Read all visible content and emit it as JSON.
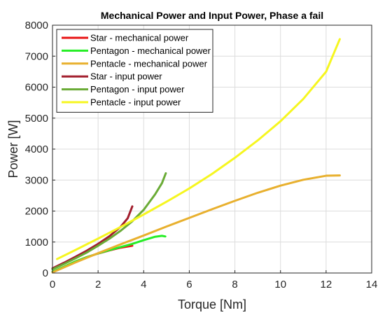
{
  "chart_data": {
    "type": "line",
    "title": "Mechanical Power and Input Power, Phase a fail",
    "xlabel": "Torque [Nm]",
    "ylabel": "Power [W]",
    "xlim": [
      0,
      14
    ],
    "ylim": [
      0,
      8000
    ],
    "xticks": [
      0,
      2,
      4,
      6,
      8,
      10,
      12,
      14
    ],
    "yticks": [
      0,
      1000,
      2000,
      3000,
      4000,
      5000,
      6000,
      7000,
      8000
    ],
    "grid": true,
    "legend_position": "top-left",
    "series": [
      {
        "name": "Star - mechanical power",
        "color": "#e81414",
        "x": [
          0,
          0.5,
          1,
          1.5,
          2,
          2.5,
          3,
          3.5
        ],
        "y": [
          40,
          200,
          370,
          510,
          630,
          730,
          820,
          880
        ]
      },
      {
        "name": "Pentagon - mechanical power",
        "color": "#26ee26",
        "x": [
          0,
          0.5,
          1,
          1.5,
          2,
          2.5,
          3,
          3.5,
          4,
          4.5,
          4.8,
          4.95
        ],
        "y": [
          40,
          200,
          370,
          510,
          630,
          740,
          840,
          940,
          1060,
          1170,
          1200,
          1180
        ]
      },
      {
        "name": "Pentacle - mechanical power",
        "color": "#e8b02e",
        "x": [
          0,
          1,
          2,
          3,
          4,
          5,
          6,
          7,
          8,
          9,
          10,
          11,
          12,
          12.6
        ],
        "y": [
          20,
          340,
          640,
          930,
          1210,
          1500,
          1780,
          2060,
          2330,
          2590,
          2820,
          3010,
          3140,
          3150
        ]
      },
      {
        "name": "Star - input power",
        "color": "#a21d2c",
        "x": [
          0,
          0.5,
          1,
          1.5,
          2,
          2.5,
          3,
          3.3,
          3.5
        ],
        "y": [
          150,
          330,
          520,
          720,
          940,
          1190,
          1500,
          1770,
          2150
        ]
      },
      {
        "name": "Pentagon - input power",
        "color": "#6aab36",
        "x": [
          0,
          0.5,
          1,
          1.5,
          2,
          2.5,
          3,
          3.5,
          4,
          4.5,
          4.8,
          4.97
        ],
        "y": [
          120,
          290,
          470,
          660,
          880,
          1110,
          1370,
          1670,
          2040,
          2540,
          2900,
          3220
        ]
      },
      {
        "name": "Pentacle - input power",
        "color": "#f6f620",
        "x": [
          0.2,
          1,
          2,
          3,
          4,
          5,
          6,
          7,
          8,
          9,
          10,
          11,
          12,
          12.6
        ],
        "y": [
          450,
          740,
          1110,
          1490,
          1890,
          2300,
          2730,
          3200,
          3720,
          4280,
          4900,
          5620,
          6500,
          7550
        ]
      }
    ]
  }
}
